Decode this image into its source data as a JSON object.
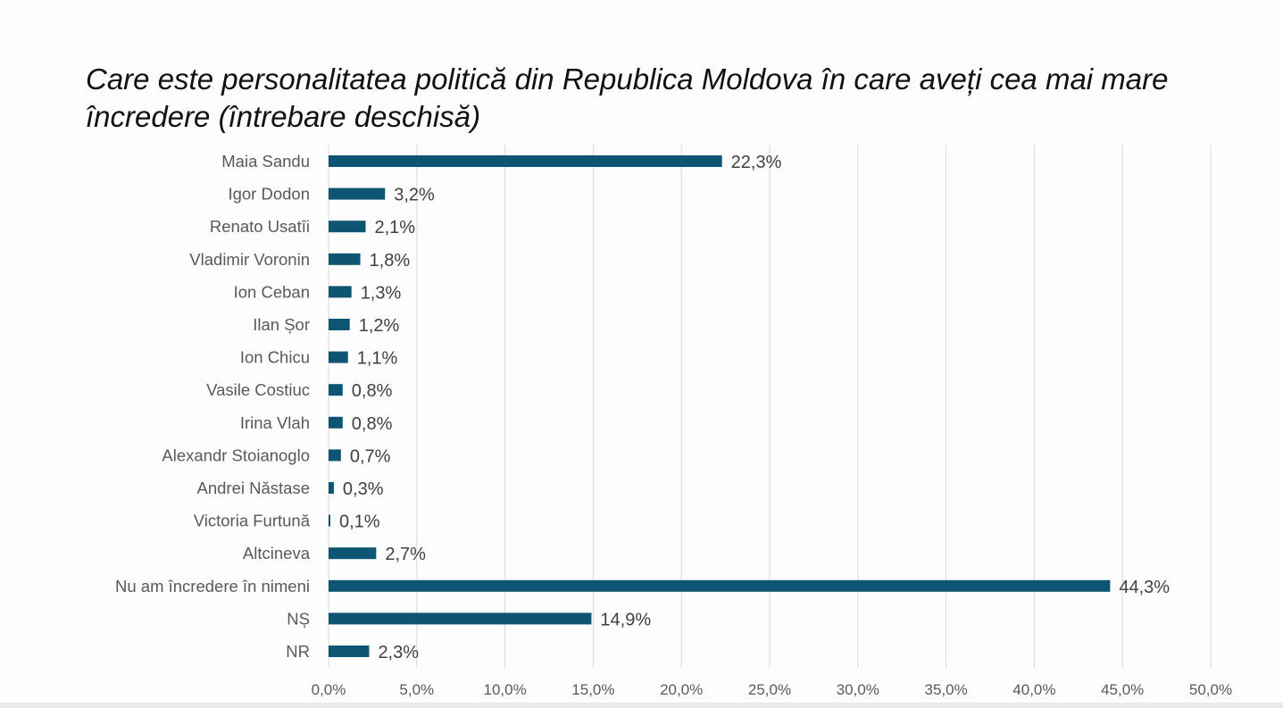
{
  "chart_data": {
    "type": "bar",
    "orientation": "horizontal",
    "title": "Care este personalitatea politică din Republica Moldova în care aveți cea mai mare încredere (întrebare deschisă)",
    "xlabel": "",
    "ylabel": "",
    "categories": [
      "Maia Sandu",
      "Igor Dodon",
      "Renato Usatîi",
      "Vladimir Voronin",
      "Ion Ceban",
      "Ilan Șor",
      "Ion Chicu",
      "Vasile Costiuc",
      "Irina Vlah",
      "Alexandr Stoianoglo",
      "Andrei Năstase",
      "Victoria Furtună",
      "Altcineva",
      "Nu am încredere în nimeni",
      "NȘ",
      "NR"
    ],
    "values": [
      22.3,
      3.2,
      2.1,
      1.8,
      1.3,
      1.2,
      1.1,
      0.8,
      0.8,
      0.7,
      0.3,
      0.1,
      2.7,
      44.3,
      14.9,
      2.3
    ],
    "data_labels": [
      "22,3%",
      "3,2%",
      "2,1%",
      "1,8%",
      "1,3%",
      "1,2%",
      "1,1%",
      "0,8%",
      "0,8%",
      "0,7%",
      "0,3%",
      "0,1%",
      "2,7%",
      "44,3%",
      "14,9%",
      "2,3%"
    ],
    "xlim": [
      0,
      50
    ],
    "x_ticks": [
      "0,0%",
      "5,0%",
      "10,0%",
      "15,0%",
      "20,0%",
      "25,0%",
      "30,0%",
      "35,0%",
      "40,0%",
      "45,0%",
      "50,0%"
    ],
    "grid": true,
    "legend": "none",
    "bar_color": "#0e5473",
    "grid_color": "#d9d9d9"
  }
}
